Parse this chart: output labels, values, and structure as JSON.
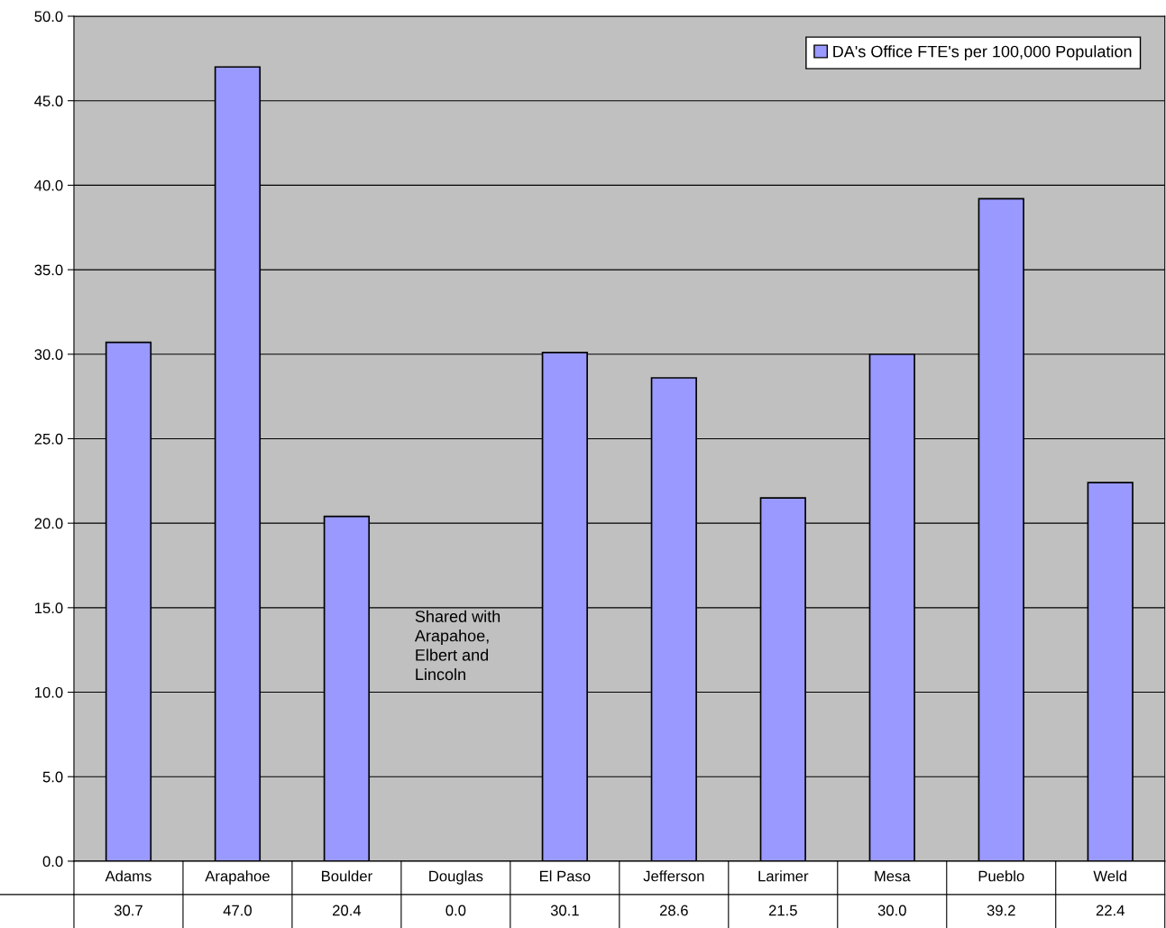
{
  "chart_data": {
    "type": "bar",
    "categories": [
      "Adams",
      "Arapahoe",
      "Boulder",
      "Douglas",
      "El Paso",
      "Jefferson",
      "Larimer",
      "Mesa",
      "Pueblo",
      "Weld"
    ],
    "series": [
      {
        "name": "DA's Office FTE's per 100,000 Population",
        "color": "#9999ff",
        "values": [
          30.7,
          47.0,
          20.4,
          0.0,
          30.1,
          28.6,
          21.5,
          30.0,
          39.2,
          22.4
        ],
        "value_labels": [
          "30.7",
          "47.0",
          "20.4",
          "0.0",
          "30.1",
          "28.6",
          "21.5",
          "30.0",
          "39.2",
          "22.4"
        ]
      }
    ],
    "ylim": [
      0,
      50
    ],
    "yticks": [
      {
        "value": 0,
        "label": "0.0"
      },
      {
        "value": 5,
        "label": "5.0"
      },
      {
        "value": 10,
        "label": "10.0"
      },
      {
        "value": 15,
        "label": "15.0"
      },
      {
        "value": 20,
        "label": "20.0"
      },
      {
        "value": 25,
        "label": "25.0"
      },
      {
        "value": 30,
        "label": "30.0"
      },
      {
        "value": 35,
        "label": "35.0"
      },
      {
        "value": 40,
        "label": "40.0"
      },
      {
        "value": 45,
        "label": "45.0"
      },
      {
        "value": 50,
        "label": "50.0"
      }
    ],
    "grid": "y",
    "legend": "top right",
    "annotations": [
      "Shared with\nArapahoe,\nElbert and\nLincoln"
    ]
  }
}
